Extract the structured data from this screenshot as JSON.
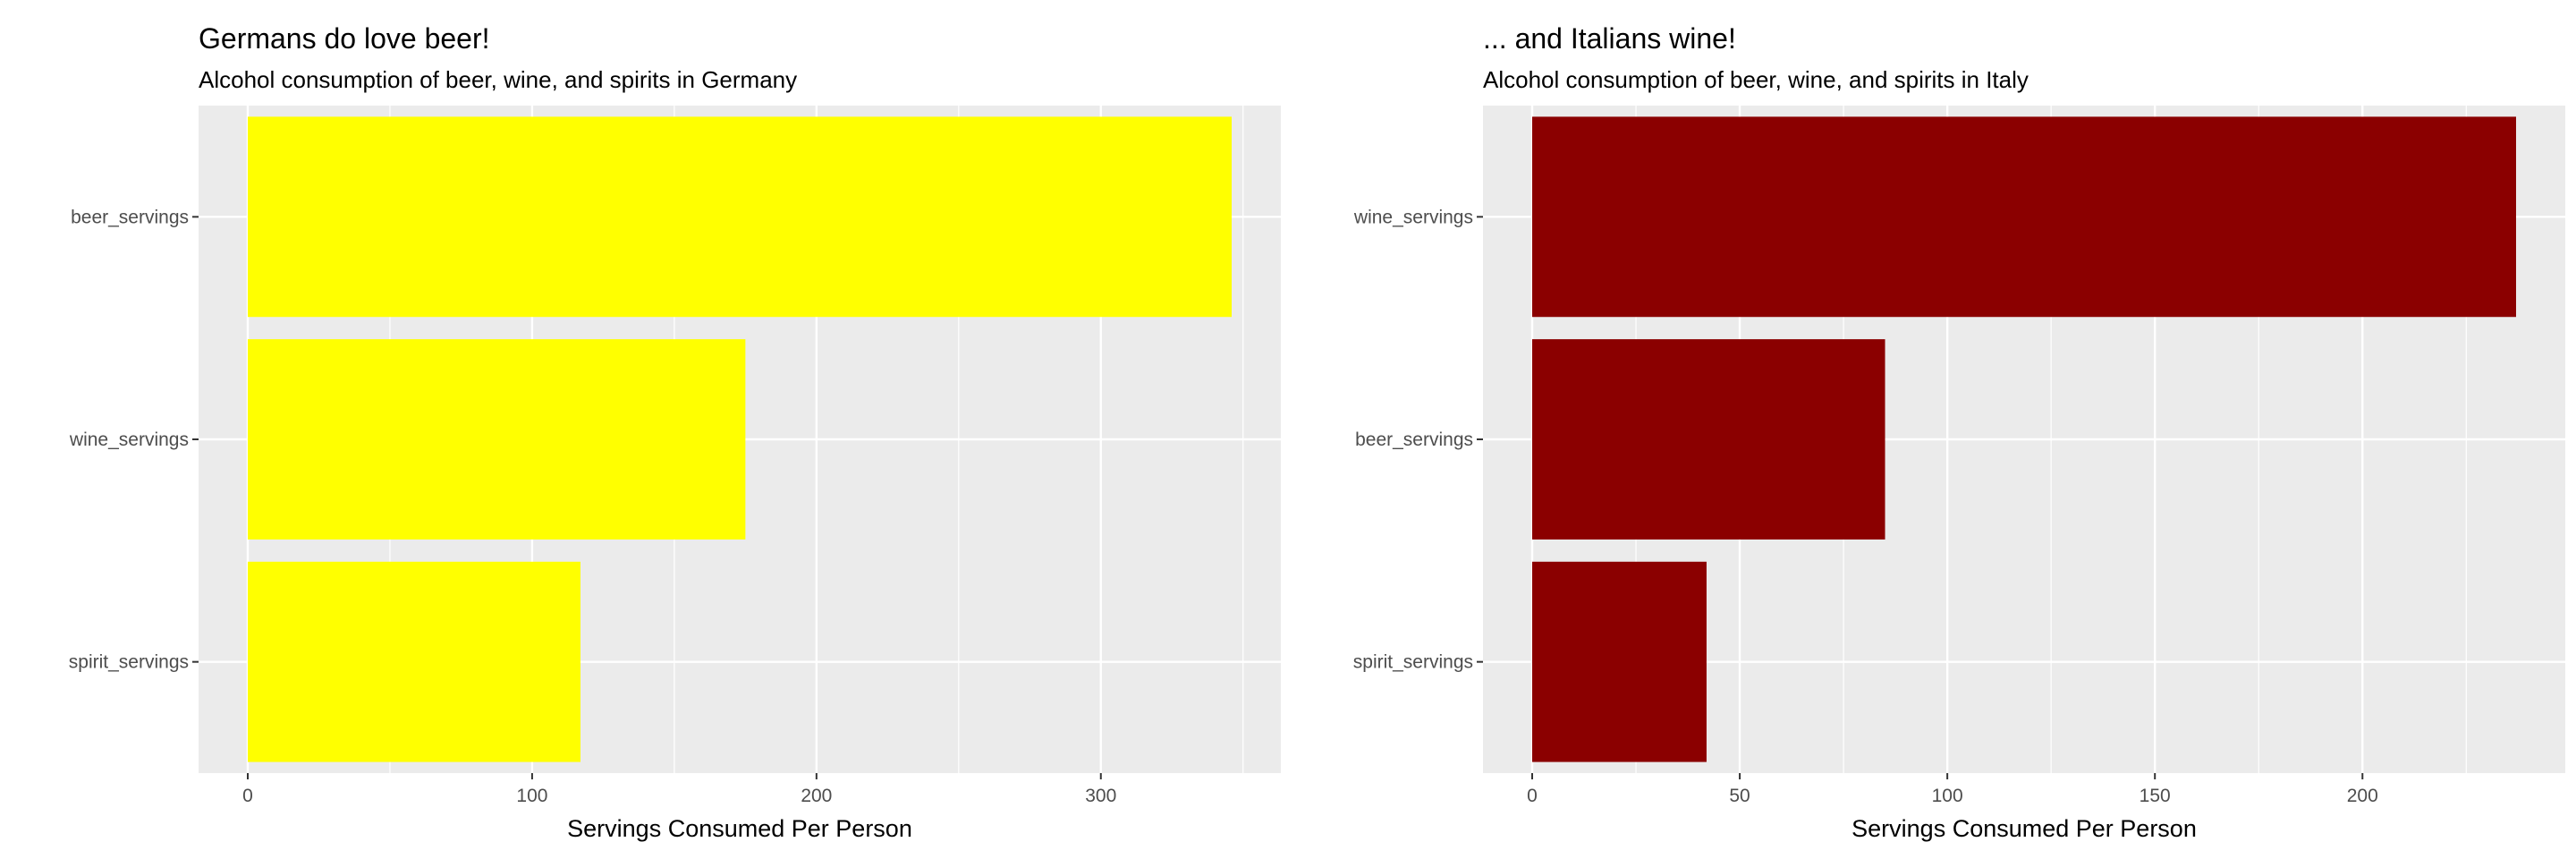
{
  "chart_data": [
    {
      "type": "bar",
      "orientation": "horizontal",
      "title": "Germans do love beer!",
      "subtitle": "Alcohol consumption of beer, wine, and spirits in Germany",
      "xlabel": "Servings Consumed Per Person",
      "ylabel": "",
      "categories": [
        "beer_servings",
        "wine_servings",
        "spirit_servings"
      ],
      "values": [
        346,
        175,
        117
      ],
      "xlim": [
        -17.3,
        363.3
      ],
      "xticks": [
        0,
        100,
        200,
        300
      ],
      "xtick_labels": [
        "0",
        "100",
        "200",
        "300"
      ],
      "bar_color": "#FFFF00",
      "panel_background": "#EBEBEB",
      "grid": true,
      "legend": "none"
    },
    {
      "type": "bar",
      "orientation": "horizontal",
      "title": "... and Italians wine!",
      "subtitle": "Alcohol consumption of beer, wine, and spirits in Italy",
      "xlabel": "Servings Consumed Per Person",
      "ylabel": "",
      "categories": [
        "wine_servings",
        "beer_servings",
        "spirit_servings"
      ],
      "values": [
        237,
        85,
        42
      ],
      "xlim": [
        -11.85,
        248.85
      ],
      "xticks": [
        0,
        50,
        100,
        150,
        200
      ],
      "xtick_labels": [
        "0",
        "50",
        "100",
        "150",
        "200"
      ],
      "bar_color": "#8B0000",
      "panel_background": "#EBEBEB",
      "grid": true,
      "legend": "none"
    }
  ]
}
